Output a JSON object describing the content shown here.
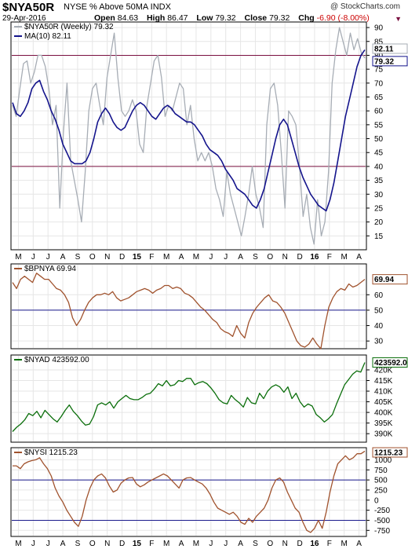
{
  "header": {
    "symbol": "$NYA50R",
    "description": "NYSE % Above 50MA  INDX",
    "credit": "@ StockCharts.com",
    "date": "29-Apr-2016",
    "open_label": "Open",
    "open": "84.63",
    "high_label": "High",
    "high": "86.47",
    "low_label": "Low",
    "low": "79.32",
    "close_label": "Close",
    "close": "79.32",
    "chg_label": "Chg",
    "chg": "-6.90 (-8.00%)",
    "caret": "▼"
  },
  "colors": {
    "gray_line": "#a7adb5",
    "navy_line": "#14148c",
    "brown_line": "#a0522d",
    "green_line": "#0a6e0a",
    "maroon_ref": "#7a1040",
    "blue_ref": "#1a1a8c",
    "grid": "#e6e6e6"
  },
  "x_axis": {
    "months": [
      "M",
      "J",
      "J",
      "A",
      "S",
      "O",
      "N",
      "D",
      "15",
      "F",
      "M",
      "A",
      "M",
      "J",
      "J",
      "A",
      "S",
      "O",
      "N",
      "D",
      "16",
      "F",
      "M",
      "A"
    ],
    "year_labels": [
      "15",
      "16"
    ]
  },
  "chart_data": [
    {
      "type": "line",
      "panel": "main",
      "legend": [
        "$NYA50R (Weekly) 79.32",
        "MA(10) 82.11"
      ],
      "ylim": [
        10,
        92
      ],
      "y_ticks": [
        15,
        20,
        25,
        30,
        35,
        40,
        45,
        50,
        55,
        60,
        65,
        70,
        75,
        80,
        85,
        90
      ],
      "reference_lines": [
        80,
        40
      ],
      "value_tags": [
        "82.11",
        "79.32"
      ],
      "series": [
        {
          "name": "$NYA50R (Weekly)",
          "color": "gray",
          "values": [
            62,
            58,
            68,
            77,
            78,
            70,
            74,
            80,
            80,
            76,
            68,
            55,
            62,
            25,
            52,
            70,
            42,
            35,
            28,
            20,
            38,
            60,
            68,
            70,
            62,
            55,
            72,
            80,
            88,
            72,
            60,
            58,
            60,
            64,
            60,
            48,
            45,
            62,
            70,
            78,
            80,
            72,
            58,
            62,
            60,
            65,
            70,
            68,
            55,
            62,
            50,
            42,
            45,
            42,
            45,
            40,
            32,
            28,
            22,
            38,
            30,
            25,
            20,
            15,
            22,
            30,
            40,
            30,
            25,
            18,
            55,
            68,
            70,
            62,
            45,
            25,
            60,
            58,
            55,
            40,
            22,
            30,
            18,
            12,
            28,
            15,
            20,
            38,
            70,
            82,
            90,
            85,
            80,
            88,
            82,
            86,
            81,
            79
          ]
        },
        {
          "name": "MA(10)",
          "color": "navy",
          "values": [
            63,
            59,
            58,
            60,
            63,
            68,
            70,
            71,
            67,
            64,
            60,
            57,
            53,
            48,
            45,
            42,
            41,
            41,
            41,
            42,
            45,
            50,
            56,
            59,
            61,
            59,
            56,
            54,
            53,
            54,
            57,
            60,
            62,
            63,
            62,
            60,
            58,
            57,
            59,
            61,
            62,
            61,
            59,
            58,
            57,
            56,
            56,
            55,
            53,
            51,
            48,
            46,
            45,
            44,
            42,
            39,
            37,
            35,
            32,
            31,
            30,
            28,
            26,
            25,
            28,
            32,
            38,
            44,
            50,
            55,
            57,
            55,
            50,
            45,
            40,
            36,
            33,
            30,
            28,
            26,
            25,
            24,
            28,
            34,
            42,
            50,
            58,
            64,
            70,
            76,
            80,
            82
          ]
        }
      ]
    },
    {
      "type": "line",
      "panel": "bpnya",
      "legend": [
        "$BPNYA 69.94"
      ],
      "ylim": [
        25,
        80
      ],
      "y_ticks": [
        30,
        40,
        50,
        60
      ],
      "reference_lines": [
        50
      ],
      "value_tags": [
        "69.94"
      ],
      "series": [
        {
          "name": "$BPNYA",
          "color": "brown",
          "values": [
            68,
            64,
            70,
            72,
            70,
            68,
            74,
            72,
            70,
            70,
            67,
            64,
            63,
            60,
            55,
            45,
            40,
            44,
            50,
            55,
            58,
            60,
            60,
            61,
            60,
            62,
            58,
            56,
            57,
            58,
            60,
            62,
            63,
            64,
            63,
            61,
            63,
            64,
            66,
            66,
            64,
            65,
            64,
            61,
            60,
            58,
            55,
            52,
            50,
            47,
            44,
            42,
            38,
            36,
            35,
            33,
            40,
            35,
            32,
            42,
            48,
            52,
            55,
            58,
            60,
            56,
            55,
            52,
            48,
            42,
            36,
            30,
            27,
            26,
            28,
            32,
            28,
            25,
            40,
            52,
            58,
            62,
            64,
            63,
            67,
            65,
            66,
            68,
            70
          ]
        }
      ]
    },
    {
      "type": "line",
      "panel": "nyad",
      "legend": [
        "$NYAD 423592.00"
      ],
      "ylim": [
        386000,
        427000
      ],
      "y_ticks": [
        390000,
        395000,
        400000,
        405000,
        410000,
        415000,
        420000
      ],
      "tick_labels": [
        "390K",
        "395K",
        "400K",
        "405K",
        "410K",
        "415K",
        "420K"
      ],
      "value_tags": [
        "423592.0"
      ],
      "series": [
        {
          "name": "$NYAD",
          "color": "green",
          "values": [
            391000,
            393000,
            394500,
            396500,
            399500,
            398500,
            400500,
            397500,
            401000,
            399000,
            397000,
            395500,
            398000,
            401000,
            403500,
            400500,
            398500,
            396000,
            394000,
            394500,
            398000,
            403500,
            404500,
            403500,
            405000,
            402000,
            405000,
            406500,
            408000,
            406500,
            406000,
            406000,
            407000,
            408500,
            409000,
            411000,
            413500,
            412500,
            415000,
            412500,
            413000,
            415000,
            414500,
            416000,
            416000,
            413000,
            414000,
            414500,
            413500,
            411500,
            409000,
            406000,
            404500,
            404000,
            408000,
            406000,
            404500,
            402500,
            407000,
            404500,
            404000,
            409000,
            406500,
            410000,
            412000,
            413000,
            412000,
            409500,
            412000,
            406500,
            409000,
            405000,
            402500,
            404000,
            403000,
            399000,
            397500,
            395500,
            397000,
            399000,
            404000,
            408500,
            413000,
            415500,
            418000,
            419500,
            419000,
            423500
          ]
        }
      ]
    },
    {
      "type": "line",
      "panel": "nysi",
      "legend": [
        "$NYSI 1215.23"
      ],
      "ylim": [
        -900,
        1300
      ],
      "y_ticks": [
        -750,
        -500,
        -250,
        0,
        250,
        500,
        750,
        1000
      ],
      "reference_lines": [
        500,
        -500
      ],
      "value_tags": [
        "1215.23"
      ],
      "series": [
        {
          "name": "$NYSI",
          "color": "brown",
          "values": [
            850,
            850,
            780,
            900,
            950,
            980,
            1000,
            1050,
            900,
            780,
            600,
            300,
            100,
            -50,
            -250,
            -400,
            -550,
            -650,
            -400,
            0,
            300,
            500,
            600,
            650,
            550,
            350,
            200,
            250,
            420,
            500,
            550,
            560,
            400,
            330,
            380,
            450,
            500,
            550,
            600,
            650,
            600,
            500,
            400,
            300,
            500,
            550,
            560,
            500,
            450,
            400,
            300,
            150,
            -50,
            -200,
            -250,
            -300,
            -350,
            -300,
            -400,
            -550,
            -600,
            -450,
            -550,
            -400,
            -300,
            -200,
            0,
            300,
            500,
            550,
            450,
            200,
            0,
            -200,
            -300,
            -550,
            -750,
            -800,
            -700,
            -500,
            -700,
            -300,
            200,
            600,
            900,
            1000,
            1100,
            1000,
            1050,
            1150,
            1150,
            1215
          ]
        }
      ]
    }
  ]
}
